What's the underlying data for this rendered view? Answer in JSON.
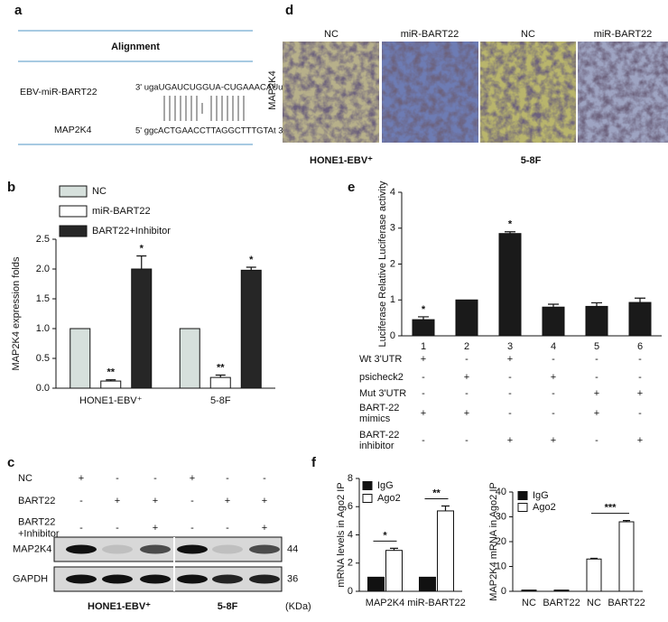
{
  "panel_labels": [
    "a",
    "b",
    "c",
    "d",
    "e",
    "f"
  ],
  "alignment": {
    "title": "Alignment",
    "rows": [
      {
        "label": "EBV-miR-BART22",
        "sequence": "3' ugaUGAUCUGGUA-CUGAAACAUu 5'"
      },
      {
        "label": "MAP2K4",
        "sequence": "5' ggcACTGAACCTTAGGCTTTGTAt 3'"
      }
    ]
  },
  "histology": {
    "columns": [
      "NC",
      "miR-BART22",
      "NC",
      "miR-BART22"
    ],
    "row_label": "MAP2K4",
    "groups": [
      "HONE1-EBV⁺",
      "5-8F"
    ]
  },
  "western_blot": {
    "conditions": [
      {
        "label": [
          "NC"
        ],
        "signs": [
          "+",
          "-",
          "-",
          "+",
          "-",
          "-"
        ]
      },
      {
        "label": [
          "BART22"
        ],
        "signs": [
          "-",
          "+",
          "+",
          "-",
          "+",
          "+"
        ]
      },
      {
        "label": [
          "BART22",
          "+Inhibitor"
        ],
        "signs": [
          "-",
          "-",
          "+",
          "-",
          "-",
          "+"
        ]
      }
    ],
    "bands": [
      {
        "label": "MAP2K4",
        "kda": 44
      },
      {
        "label": "GAPDH",
        "kda": 36
      }
    ],
    "groups": [
      "HONE1-EBV⁺",
      "5-8F"
    ],
    "unit": "(KDa)"
  },
  "chart_data": [
    {
      "type": "bar",
      "y_label": "MAP2K4 expression folds",
      "categories": [
        "HONE1-EBV⁺",
        "5-8F"
      ],
      "series": [
        {
          "name": "NC",
          "color": "#d6e0dc",
          "values": [
            1,
            1
          ]
        },
        {
          "name": "miR-BART22",
          "color": "#ffffff",
          "values": [
            0.12,
            0.18
          ],
          "errors": [
            0.02,
            0.04
          ],
          "stars": [
            "**",
            "**"
          ]
        },
        {
          "name": "BART22+Inhibitor",
          "color": "#262626",
          "values": [
            2.0,
            1.98
          ],
          "errors": [
            0.22,
            0.05
          ],
          "stars": [
            "*",
            "*"
          ]
        }
      ],
      "ylim": [
        0,
        2.5
      ],
      "yticks": [
        {
          "value": 0,
          "label": "0.0"
        },
        {
          "value": 0.5,
          "label": "0.5"
        },
        {
          "value": 1,
          "label": "1.0"
        },
        {
          "value": 1.5,
          "label": "1.5"
        },
        {
          "value": 2,
          "label": "2.0"
        },
        {
          "value": 2.5,
          "label": "2.5"
        }
      ],
      "legend": "upper left"
    },
    {
      "type": "bar",
      "y_label": "Luciferase Relative Luciferase activity",
      "categories": [
        "1",
        "2",
        "3",
        "4",
        "5",
        "6"
      ],
      "values": [
        0.45,
        1.0,
        2.85,
        0.8,
        0.82,
        0.93
      ],
      "errors": [
        0.08,
        0,
        0.05,
        0.08,
        0.1,
        0.12
      ],
      "stars": [
        "*",
        null,
        "*",
        null,
        null,
        null
      ],
      "color": "#1a1a1a",
      "ylim": [
        0,
        4
      ],
      "yticks": [
        0,
        1,
        2,
        3,
        4
      ],
      "conditions": [
        {
          "label": [
            "Wt  3'UTR"
          ],
          "signs": [
            "+",
            "-",
            "+",
            "-",
            "-",
            "-"
          ]
        },
        {
          "label": [
            "psicheck2"
          ],
          "signs": [
            "-",
            "+",
            "-",
            "+",
            "-",
            "-"
          ]
        },
        {
          "label": [
            "Mut 3'UTR"
          ],
          "signs": [
            "-",
            "-",
            "-",
            "-",
            "+",
            "+"
          ]
        },
        {
          "label": [
            "BART-22",
            "mimics"
          ],
          "signs": [
            "+",
            "+",
            "-",
            "-",
            "+",
            "-"
          ]
        },
        {
          "label": [
            "BART-22",
            "inhibitor"
          ],
          "signs": [
            "-",
            "-",
            "+",
            "+",
            "-",
            "+"
          ]
        }
      ]
    },
    {
      "type": "bar",
      "y_label": "mRNA levels in Ago2 IP",
      "categories": [
        "MAP2K4",
        "miR-BART22"
      ],
      "series": [
        {
          "name": "IgG",
          "color": "#111111",
          "values": [
            1,
            1
          ]
        },
        {
          "name": "Ago2",
          "color": "#ffffff",
          "values": [
            2.9,
            5.7
          ],
          "errors": [
            0.15,
            0.35
          ]
        }
      ],
      "stars": [
        "*",
        "**"
      ],
      "ylim": [
        0,
        8
      ],
      "yticks": [
        0,
        2,
        4,
        6,
        8
      ],
      "legend": "upper left"
    },
    {
      "type": "bar",
      "y_label": "MAP2K4 mRNA in Ago2 IP",
      "categories": [
        "NC",
        "BART22",
        "NC",
        "BART22"
      ],
      "series": [
        {
          "name": "IgG",
          "color": "#111111",
          "values": [
            0.5,
            0.5,
            null,
            null
          ]
        },
        {
          "name": "Ago2",
          "color": "#ffffff",
          "values": [
            null,
            null,
            13,
            28
          ],
          "errors": [
            null,
            null,
            0.3,
            0.5
          ]
        }
      ],
      "stars": [
        null,
        null,
        null,
        "***"
      ],
      "ylim": [
        0,
        40
      ],
      "yticks": [
        0,
        10,
        20,
        30,
        40
      ],
      "legend": "upper left"
    }
  ]
}
